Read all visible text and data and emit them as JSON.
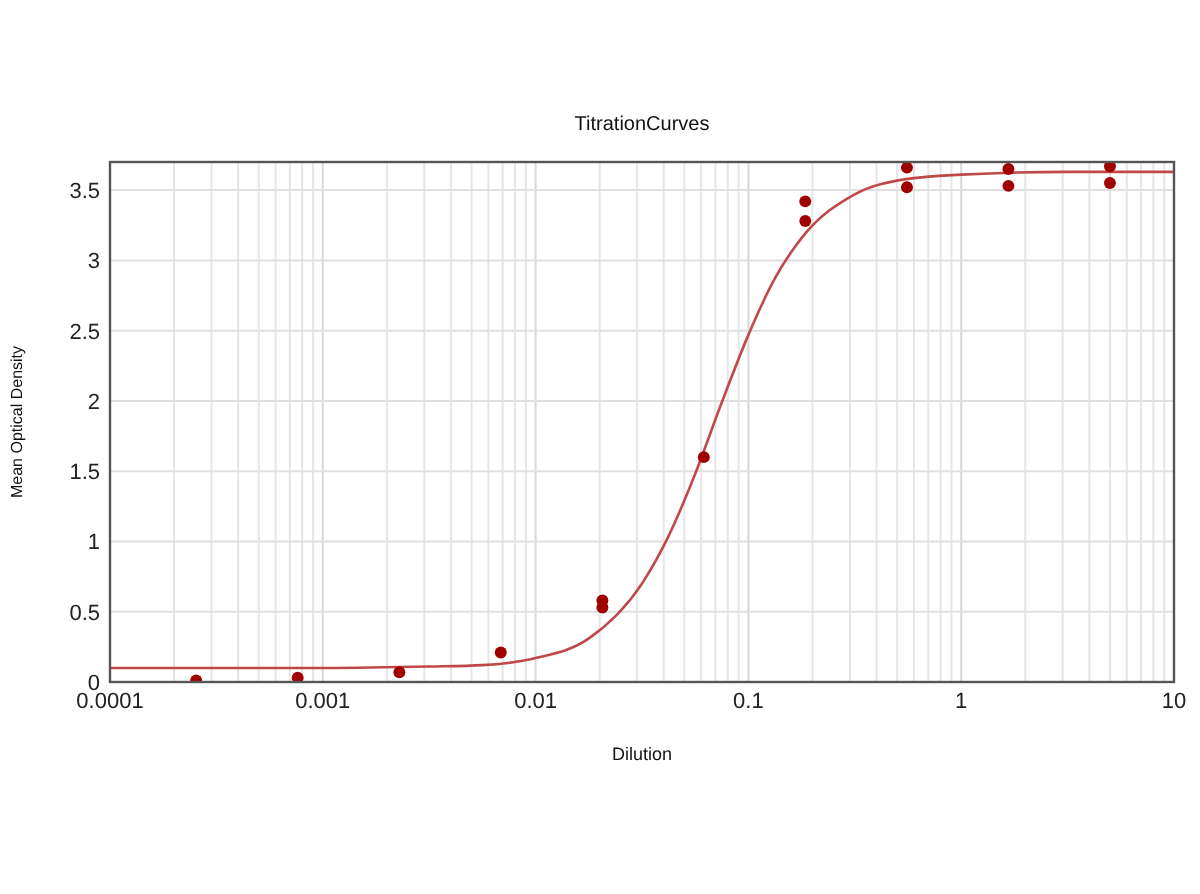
{
  "chart_data": {
    "type": "scatter",
    "title": "TitrationCurves",
    "xlabel": "Dilution",
    "ylabel": "Mean Optical Density",
    "log": "x",
    "grid": true,
    "marker": "circle",
    "xlim": [
      0.0001,
      10
    ],
    "ylim": [
      0,
      3.7
    ],
    "xticks": [
      0.0001,
      {
        "value": 0.0002,
        "label": null
      },
      {
        "value": 0.0003,
        "label": null
      },
      {
        "value": 0.0004,
        "label": null
      },
      {
        "value": 0.0005,
        "label": null
      },
      {
        "value": 0.0006,
        "label": null
      },
      {
        "value": 0.0007,
        "label": null
      },
      {
        "value": 0.0008,
        "label": null
      },
      {
        "value": 0.0009,
        "label": null
      },
      0.001,
      {
        "value": 0.002,
        "label": null
      },
      {
        "value": 0.003,
        "label": null
      },
      {
        "value": 0.004,
        "label": null
      },
      {
        "value": 0.005,
        "label": null
      },
      {
        "value": 0.006,
        "label": null
      },
      {
        "value": 0.007,
        "label": null
      },
      {
        "value": 0.008,
        "label": null
      },
      {
        "value": 0.009,
        "label": null
      },
      0.01,
      {
        "value": 0.02,
        "label": null
      },
      {
        "value": 0.03,
        "label": null
      },
      {
        "value": 0.04,
        "label": null
      },
      {
        "value": 0.05,
        "label": null
      },
      {
        "value": 0.06,
        "label": null
      },
      {
        "value": 0.07,
        "label": null
      },
      {
        "value": 0.08,
        "label": null
      },
      {
        "value": 0.09,
        "label": null
      },
      0.1,
      {
        "value": 0.2,
        "label": null
      },
      {
        "value": 0.3,
        "label": null
      },
      {
        "value": 0.4,
        "label": null
      },
      {
        "value": 0.5,
        "label": null
      },
      {
        "value": 0.6,
        "label": null
      },
      {
        "value": 0.7,
        "label": null
      },
      {
        "value": 0.8,
        "label": null
      },
      {
        "value": 0.9,
        "label": null
      },
      1,
      {
        "value": 2,
        "label": null
      },
      {
        "value": 3,
        "label": null
      },
      {
        "value": 4,
        "label": null
      },
      {
        "value": 5,
        "label": null
      },
      {
        "value": 6,
        "label": null
      },
      {
        "value": 7,
        "label": null
      },
      {
        "value": 8,
        "label": null
      },
      {
        "value": 9,
        "label": null
      },
      10
    ],
    "yticks": [
      0,
      0.5,
      1,
      1.5,
      2,
      2.5,
      3,
      3.5
    ],
    "series": [
      {
        "type": "line",
        "color": "#c04848",
        "marker": "none",
        "x": [
          0.0001,
          0.000316,
          0.001,
          0.00316,
          0.00562,
          0.01,
          0.0178,
          0.0316,
          0.0422,
          0.0562,
          0.075,
          0.1,
          0.133,
          0.178,
          0.316,
          0.562,
          1,
          3.16,
          10
        ],
        "values": [
          0.1,
          0.1,
          0.1,
          0.11,
          0.12,
          0.17,
          0.31,
          0.7,
          1.04,
          1.48,
          1.99,
          2.47,
          2.87,
          3.16,
          3.47,
          3.58,
          3.61,
          3.63,
          3.63
        ]
      },
      {
        "color": "#a00000",
        "x": [
          0.000254,
          0.000762,
          0.00229,
          0.00686,
          0.0206,
          0.0206,
          0.0617,
          0.185,
          0.185,
          0.556,
          0.556,
          1.667,
          1.667,
          5,
          5
        ],
        "values": [
          0.01,
          0.03,
          0.07,
          0.21,
          0.53,
          0.58,
          1.6,
          3.28,
          3.42,
          3.52,
          3.66,
          3.53,
          3.65,
          3.55,
          3.67
        ]
      }
    ]
  }
}
